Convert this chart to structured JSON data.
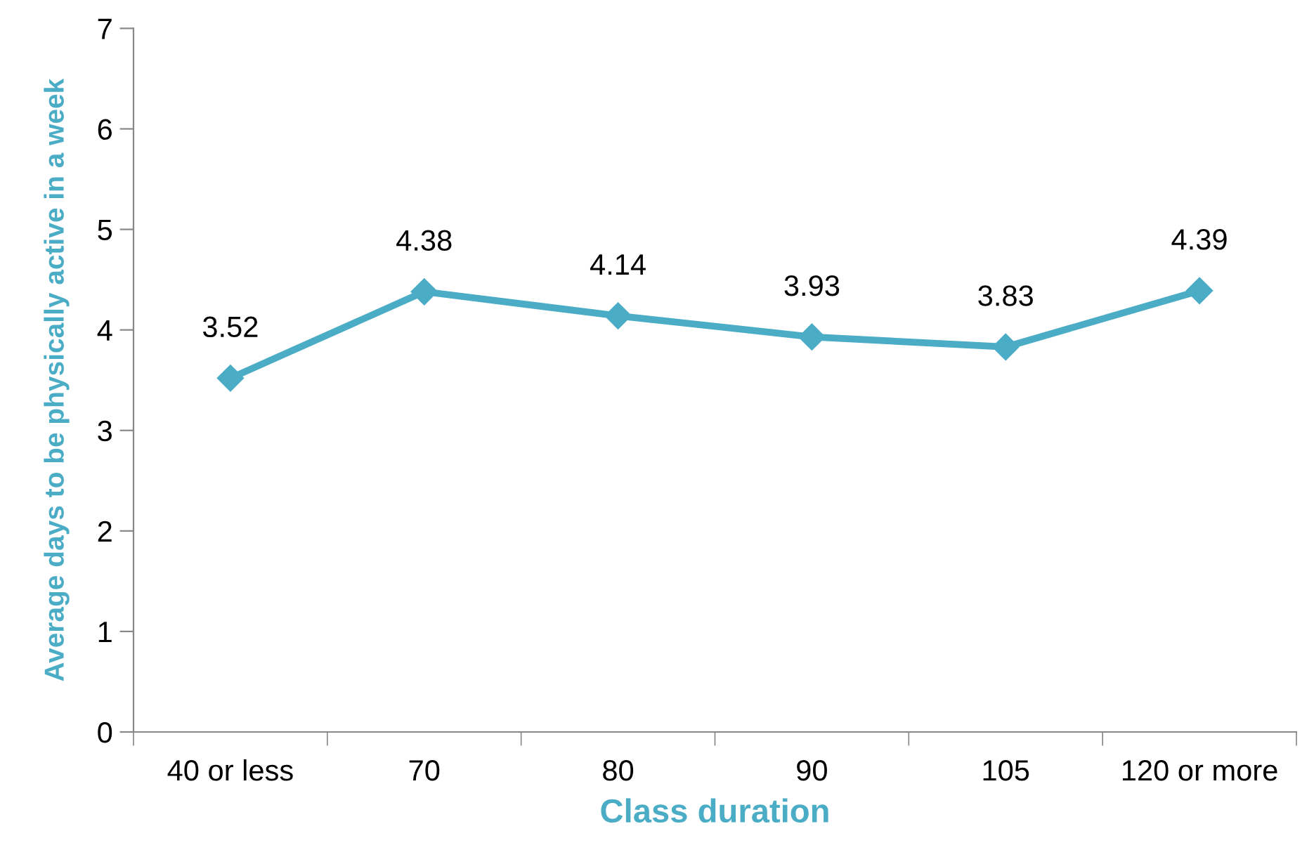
{
  "chart_data": {
    "type": "line",
    "xlabel": "Class duration",
    "ylabel": "Average days to be physically active in a week",
    "categories": [
      "40 or less",
      "70",
      "80",
      "90",
      "105",
      "120 or more"
    ],
    "series": [
      {
        "color": "#4bacc6",
        "values": [
          3.52,
          4.38,
          4.14,
          3.93,
          3.83,
          4.39
        ]
      }
    ],
    "ylim": [
      0,
      7
    ],
    "yticks": [
      0,
      1,
      2,
      3,
      4,
      5,
      6,
      7
    ],
    "grid": false,
    "marker": "diamond",
    "line_style": "solid",
    "data_labels": true
  }
}
